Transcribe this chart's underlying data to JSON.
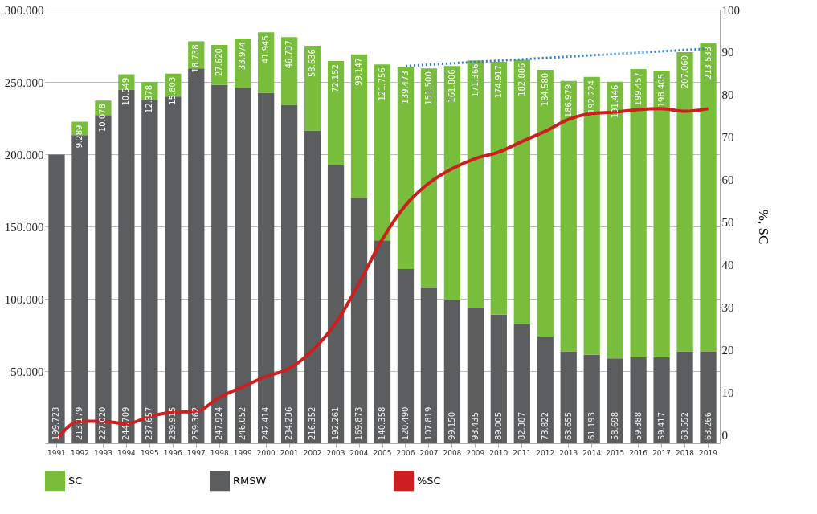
{
  "chart_data": {
    "type": "bar",
    "stacked": true,
    "y2label": "%, SC",
    "categories": [
      "1991",
      "1992",
      "1993",
      "1994",
      "1995",
      "1996",
      "1997",
      "1998",
      "1999",
      "2000",
      "2001",
      "2002",
      "2003",
      "2004",
      "2005",
      "2006",
      "2007",
      "2008",
      "2009",
      "2010",
      "2011",
      "2012",
      "2013",
      "2014",
      "2015",
      "2016",
      "2017",
      "2018",
      "2019"
    ],
    "series": [
      {
        "name": "RMSW",
        "color": "#5b5d5f",
        "values": [
          199723,
          213179,
          227020,
          244709,
          237657,
          239915,
          259362,
          247924,
          246052,
          242414,
          234236,
          216352,
          192261,
          169873,
          140358,
          120490,
          107819,
          99150,
          93435,
          89005,
          82387,
          73822,
          63655,
          61193,
          58698,
          59388,
          59417,
          63552,
          63266
        ],
        "value_labels": [
          "199.723",
          "213.179",
          "227.020",
          "244.709",
          "237.657",
          "239.915",
          "259.362",
          "247.924",
          "246.052",
          "242.414",
          "234.236",
          "216.352",
          "192.261",
          "169.873",
          "140.358",
          "120.490",
          "107.819",
          "99.150",
          "93.435",
          "89.005",
          "82.387",
          "73.822",
          "63.655",
          "61.193",
          "58.698",
          "59.388",
          "59.417",
          "63.552",
          "63.266"
        ]
      },
      {
        "name": "SC",
        "color": "#78bd3c",
        "values": [
          null,
          9289,
          10078,
          10549,
          12378,
          15803,
          18738,
          27620,
          33974,
          41945,
          46737,
          58636,
          72152,
          99147,
          121756,
          139473,
          151500,
          161806,
          171366,
          174917,
          182886,
          184580,
          186979,
          192224,
          191446,
          199457,
          198405,
          207060,
          213533
        ],
        "value_labels": [
          null,
          "9.289",
          "10.078",
          "10.549",
          "12.378",
          "15.803",
          "18.738",
          "27.620",
          "33.974",
          "41.945",
          "46.737",
          "58.636",
          "72.152",
          "99.147",
          "121.756",
          "139.473",
          "151.500",
          "161.806",
          "171.366",
          "174.917",
          "182.886",
          "184.580",
          "186.979",
          "192.224",
          "191.446",
          "199.457",
          "198.405",
          "207.060",
          "213.533"
        ]
      },
      {
        "name": "%SC",
        "type": "line",
        "axis": "y2",
        "color": "#cc1f1f",
        "values": [
          -1,
          3.2,
          3.2,
          2.6,
          4.3,
          5.3,
          5.5,
          8.8,
          11.3,
          13.7,
          15.6,
          19.9,
          26.3,
          35.7,
          46,
          54,
          59.2,
          62.6,
          65,
          66.5,
          69,
          71.4,
          74.2,
          75.6,
          75.9,
          76.5,
          76.7,
          76.1,
          76.7
        ]
      },
      {
        "type": "line",
        "line_style": "dotted",
        "color": "#2e7bd1",
        "values": [
          null,
          null,
          null,
          null,
          null,
          null,
          null,
          null,
          null,
          null,
          null,
          null,
          null,
          null,
          null,
          261000,
          null,
          null,
          null,
          null,
          null,
          null,
          null,
          null,
          null,
          null,
          null,
          null,
          273000
        ]
      }
    ],
    "ylim": [
      0,
      300000
    ],
    "yticks": [
      {
        "value": 50000,
        "label": "50.000"
      },
      {
        "value": 100000,
        "label": "100.000"
      },
      {
        "value": 150000,
        "label": "150.000"
      },
      {
        "value": 200000,
        "label": "200.000"
      },
      {
        "value": 250000,
        "label": "250.000"
      },
      {
        "value": 300000,
        "label": "300.000"
      }
    ],
    "y2lim": [
      -2,
      100
    ],
    "y2ticks": [
      0,
      10,
      20,
      30,
      40,
      50,
      60,
      70,
      80,
      90,
      100
    ],
    "grid": "y",
    "legend": "bottom"
  }
}
